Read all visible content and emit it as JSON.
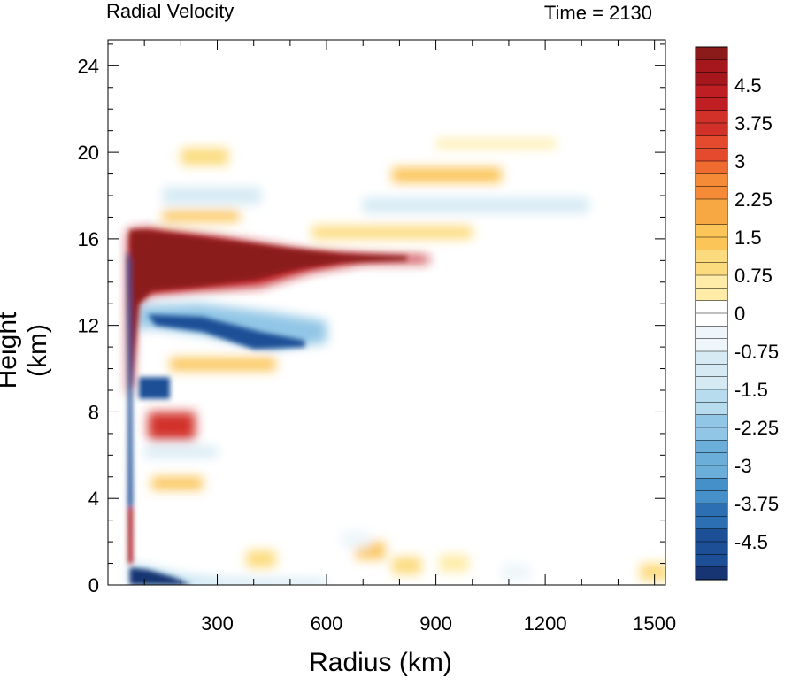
{
  "title_left": "Radial Velocity",
  "title_right": "Time = 2130",
  "chart_data": {
    "type": "heatmap",
    "xlabel": "Radius (km)",
    "ylabel": "Height (km)",
    "xlim": [
      0,
      1530
    ],
    "ylim": [
      0,
      25.2
    ],
    "x_ticks": [
      300,
      600,
      900,
      1200,
      1500
    ],
    "y_ticks": [
      0,
      4,
      8,
      12,
      16,
      20,
      24
    ],
    "colorbar": {
      "min": -5.25,
      "max": 5.25,
      "step": 0.25,
      "labels": [
        "4.5",
        "3.75",
        "3",
        "2.25",
        "1.5",
        "0.75",
        "0",
        "-0.75",
        "-1.5",
        "-2.25",
        "-3",
        "-3.75",
        "-4.5"
      ],
      "label_values": [
        4.5,
        3.75,
        3,
        2.25,
        1.5,
        0.75,
        0,
        -0.75,
        -1.5,
        -2.25,
        -3,
        -3.75,
        -4.5
      ],
      "colors_top_to_bottom": [
        "#8b1a1a",
        "#a5171c",
        "#bf1e23",
        "#d2312a",
        "#e44a2e",
        "#ef6b2f",
        "#f58b36",
        "#f8a842",
        "#fbc558",
        "#fcdb7e",
        "#feeca8",
        "#fff7d6",
        "#ffffff",
        "#eef6fb",
        "#d6eaf4",
        "#b7dcee",
        "#92c6e6",
        "#6aaed9",
        "#4590c8",
        "#2c6fb2",
        "#1d4f96",
        "#173572"
      ]
    },
    "features": [
      {
        "name": "outflow",
        "sign": "positive",
        "r_range": [
          50,
          900
        ],
        "z_center": 14.8,
        "max_value": 5.2
      },
      {
        "name": "upper inflow",
        "sign": "negative",
        "r_range": [
          60,
          600
        ],
        "z_center": 12.0,
        "max_value": -4.8
      },
      {
        "name": "boundary layer inflow",
        "sign": "negative",
        "r_range": [
          50,
          300
        ],
        "z_center": 0.3,
        "max_value": -5.0
      },
      {
        "name": "mid-level outflow",
        "sign": "positive",
        "r_range": [
          50,
          250
        ],
        "z_center": 7.2,
        "max_value": 4.0
      },
      {
        "name": "eyewall inflow",
        "sign": "negative",
        "r_range": [
          40,
          110
        ],
        "z_center": 6.0,
        "max_value": -5.0
      },
      {
        "name": "upper layer banding",
        "sign": "mixed",
        "r_range": [
          150,
          1400
        ],
        "z_center": 18.0,
        "max_value": 1.8
      }
    ]
  }
}
